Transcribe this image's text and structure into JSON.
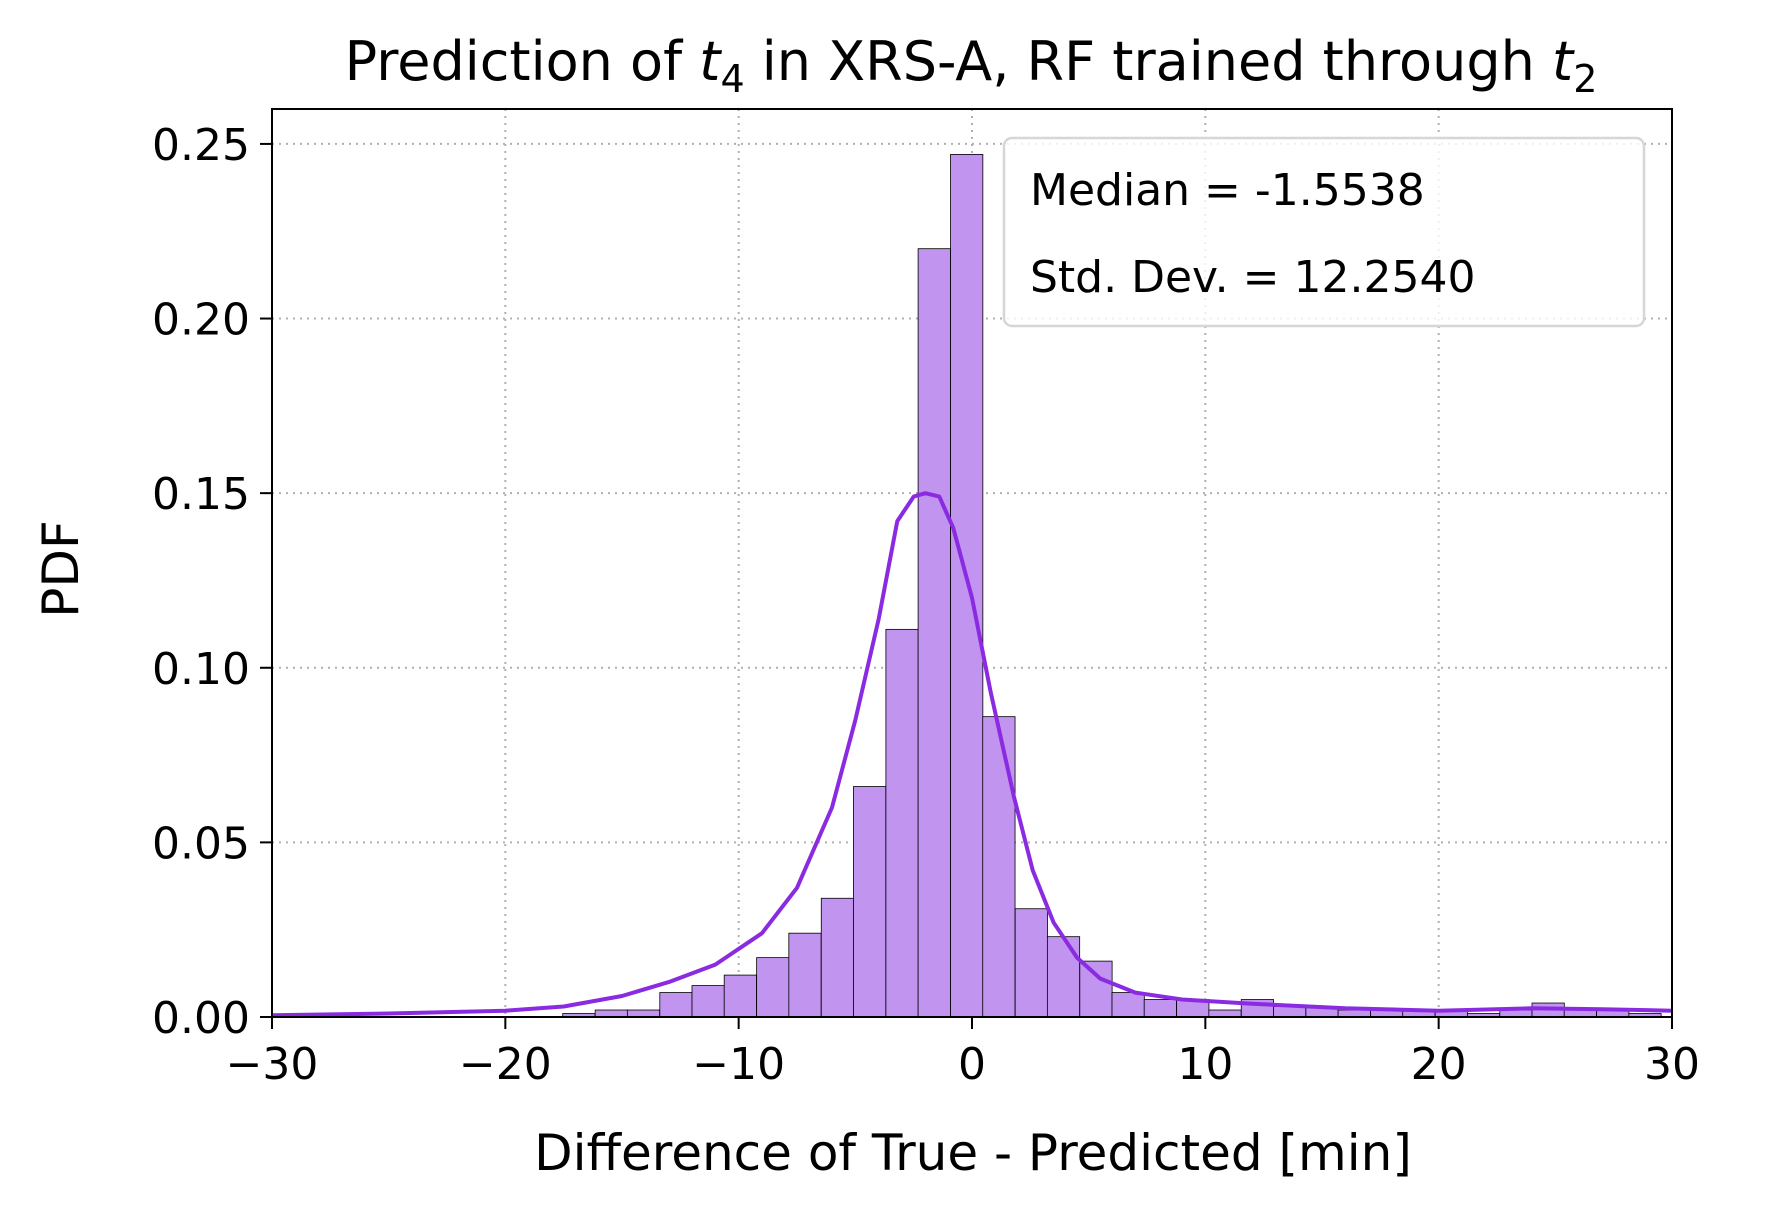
{
  "chart_data": {
    "type": "bar",
    "title_parts": [
      {
        "text": "Prediction of "
      },
      {
        "text": "t",
        "italic": true
      },
      {
        "text": "4",
        "sub": true
      },
      {
        "text": " in XRS-A, RF trained through "
      },
      {
        "text": "t",
        "italic": true
      },
      {
        "text": "2",
        "sub": true
      }
    ],
    "xlabel": "Difference of True - Predicted [min]",
    "ylabel": "PDF",
    "xlim": [
      -30,
      30
    ],
    "ylim": [
      0,
      0.26
    ],
    "x_ticks": [
      -30,
      -20,
      -10,
      0,
      10,
      20,
      30
    ],
    "x_tick_labels": [
      "−30",
      "−20",
      "−10",
      "0",
      "10",
      "20",
      "30"
    ],
    "y_ticks": [
      0.0,
      0.05,
      0.1,
      0.15,
      0.2,
      0.25
    ],
    "y_tick_labels": [
      "0.00",
      "0.05",
      "0.10",
      "0.15",
      "0.20",
      "0.25"
    ],
    "grid": true,
    "legend_placement": "top-right",
    "legend_lines": [
      "Median = -1.5538",
      "Std. Dev. = 12.2540"
    ],
    "colors": {
      "bar_fill": "#c194ef",
      "bar_edge": "#000000",
      "kde_line": "#8a2be2",
      "grid": "#b0b0b0"
    },
    "histogram": {
      "bin_width": 1.385,
      "bins": [
        {
          "x0": -30.0,
          "height": 0.0
        },
        {
          "x0": -17.54,
          "height": 0.001
        },
        {
          "x0": -16.15,
          "height": 0.002
        },
        {
          "x0": -14.77,
          "height": 0.002
        },
        {
          "x0": -13.38,
          "height": 0.007
        },
        {
          "x0": -12.0,
          "height": 0.009
        },
        {
          "x0": -10.62,
          "height": 0.012
        },
        {
          "x0": -9.23,
          "height": 0.017
        },
        {
          "x0": -7.85,
          "height": 0.024
        },
        {
          "x0": -6.46,
          "height": 0.034
        },
        {
          "x0": -5.08,
          "height": 0.066
        },
        {
          "x0": -3.69,
          "height": 0.111
        },
        {
          "x0": -2.31,
          "height": 0.22
        },
        {
          "x0": -0.92,
          "height": 0.247
        },
        {
          "x0": 0.46,
          "height": 0.086
        },
        {
          "x0": 1.85,
          "height": 0.031
        },
        {
          "x0": 3.23,
          "height": 0.023
        },
        {
          "x0": 4.62,
          "height": 0.016
        },
        {
          "x0": 6.0,
          "height": 0.007
        },
        {
          "x0": 7.38,
          "height": 0.005
        },
        {
          "x0": 8.77,
          "height": 0.005
        },
        {
          "x0": 10.15,
          "height": 0.002
        },
        {
          "x0": 11.54,
          "height": 0.005
        },
        {
          "x0": 12.92,
          "height": 0.003
        },
        {
          "x0": 14.31,
          "height": 0.003
        },
        {
          "x0": 15.69,
          "height": 0.002
        },
        {
          "x0": 17.08,
          "height": 0.002
        },
        {
          "x0": 18.46,
          "height": 0.002
        },
        {
          "x0": 19.85,
          "height": 0.002
        },
        {
          "x0": 21.23,
          "height": 0.001
        },
        {
          "x0": 22.62,
          "height": 0.002
        },
        {
          "x0": 24.0,
          "height": 0.004
        },
        {
          "x0": 25.38,
          "height": 0.002
        },
        {
          "x0": 26.77,
          "height": 0.002
        },
        {
          "x0": 28.15,
          "height": 0.001
        }
      ]
    },
    "kde": {
      "x": [
        -30,
        -25,
        -20,
        -17.5,
        -15,
        -13,
        -11,
        -9,
        -7.5,
        -6,
        -5,
        -4,
        -3.2,
        -2.5,
        -2.0,
        -1.4,
        -0.8,
        0,
        0.8,
        1.8,
        2.6,
        3.5,
        4.5,
        5.5,
        7,
        9,
        12,
        16,
        20,
        24,
        27,
        30
      ],
      "y": [
        0.0005,
        0.001,
        0.0018,
        0.003,
        0.006,
        0.01,
        0.015,
        0.024,
        0.037,
        0.06,
        0.085,
        0.114,
        0.142,
        0.149,
        0.15,
        0.149,
        0.14,
        0.12,
        0.093,
        0.063,
        0.042,
        0.027,
        0.017,
        0.011,
        0.007,
        0.005,
        0.0038,
        0.0025,
        0.0018,
        0.0025,
        0.0022,
        0.0018
      ]
    }
  }
}
